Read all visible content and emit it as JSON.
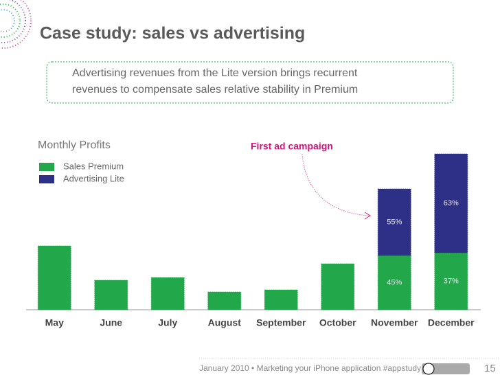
{
  "slide": {
    "title": "Case study: sales vs advertising",
    "callout": [
      "Advertising revenues from the Lite version brings recurrent",
      "revenues to compensate sales relative stability in Premium"
    ],
    "footer": "January 2010 • Marketing your iPhone application  #appstudy •",
    "page_number": "15"
  },
  "chart_data": {
    "type": "stacked_bar",
    "title": "Monthly Profits",
    "annotation": "First ad campaign",
    "categories": [
      "May",
      "June",
      "July",
      "August",
      "September",
      "October",
      "November",
      "December"
    ],
    "series": [
      {
        "name": "Sales Premium",
        "color": "#22a84a",
        "values": [
          93,
          43,
          47,
          26,
          29,
          67,
          79,
          83
        ],
        "percent_labels": [
          null,
          null,
          null,
          null,
          null,
          null,
          "45%",
          "37%"
        ]
      },
      {
        "name": "Advertising Lite",
        "color": "#2e3087",
        "values": [
          0,
          0,
          0,
          0,
          0,
          0,
          97,
          144
        ],
        "percent_labels": [
          null,
          null,
          null,
          null,
          null,
          null,
          "55%",
          "63%"
        ]
      }
    ],
    "legend": "top-left"
  }
}
